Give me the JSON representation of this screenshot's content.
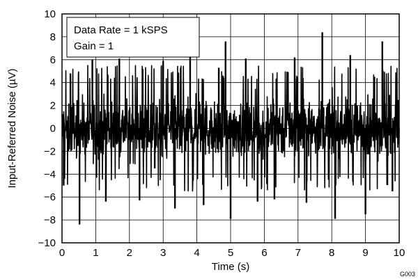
{
  "chart_data": {
    "type": "line",
    "xlabel": "Time (s)",
    "ylabel": "Input-Referred Noise (µV)",
    "xlim": [
      0,
      10
    ],
    "ylim": [
      -10,
      10
    ],
    "xticks": [
      0,
      1,
      2,
      3,
      4,
      5,
      6,
      7,
      8,
      9,
      10
    ],
    "yticks": [
      -10,
      -8,
      -6,
      -4,
      -2,
      0,
      2,
      4,
      6,
      8,
      10
    ],
    "xtick_labels": [
      "0",
      "1",
      "2",
      "3",
      "4",
      "5",
      "6",
      "7",
      "8",
      "9",
      "10"
    ],
    "ytick_labels": [
      "−10",
      "−8",
      "−6",
      "−4",
      "−2",
      "0",
      "2",
      "4",
      "6",
      "8",
      "10"
    ],
    "grid": true,
    "annotations": [
      "Data Rate = 1 kSPS",
      "Gain = 1"
    ],
    "figure_id": "G003",
    "series": [
      {
        "color": "#000000",
        "noise_band": [
          -3.8,
          3.8
        ],
        "x": [
          0.05,
          0.25,
          0.52,
          0.9,
          1.3,
          1.7,
          2.3,
          2.75,
          3.0,
          3.35,
          3.8,
          4.2,
          4.65,
          4.85,
          5.0,
          5.45,
          5.8,
          6.3,
          6.9,
          7.25,
          7.72,
          8.1,
          8.55,
          9.0,
          9.5,
          9.8
        ],
        "y": [
          -5.0,
          4.8,
          -8.4,
          6.0,
          -6.4,
          6.1,
          -6.3,
          -3.5,
          5.9,
          -7.0,
          6.3,
          -6.7,
          5.3,
          7.6,
          -7.9,
          6.1,
          -6.4,
          -6.2,
          6.2,
          -6.5,
          8.4,
          -7.9,
          6.4,
          -7.5,
          7.6,
          -5.5
        ]
      }
    ]
  }
}
